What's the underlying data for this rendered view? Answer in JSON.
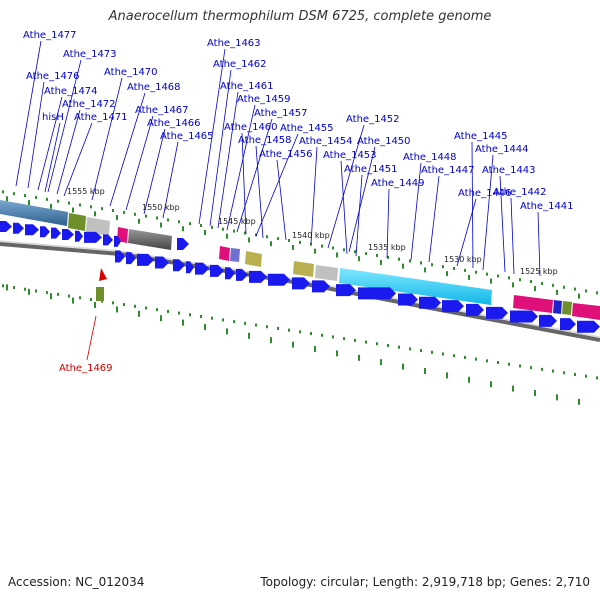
{
  "title": "Anaerocellum thermophilum DSM 6725, complete genome",
  "accession": "Accession: NC_012034",
  "topology": "Topology: circular; Length: 2,919,718 bp; Genes: 2,710",
  "colors": {
    "gene": "#1a1aee",
    "label": "#0000cc",
    "highlight": "#cc0000",
    "backbone": "#888888",
    "tick": "#2e8b2e"
  },
  "kbp_ticks": [
    "1555 kbp",
    "1550 kbp",
    "1545 kbp",
    "1540 kbp",
    "1535 kbp",
    "1530 kbp",
    "1525 kbp"
  ],
  "gene_labels": [
    "Athe_1477",
    "Athe_1473",
    "Athe_1476",
    "Athe_1474",
    "hisH",
    "Athe_1472",
    "Athe_1471",
    "Athe_1470",
    "Athe_1468",
    "Athe_1467",
    "Athe_1466",
    "Athe_1465",
    "Athe_1463",
    "Athe_1462",
    "Athe_1461",
    "Athe_1459",
    "Athe_1457",
    "Athe_1460",
    "Athe_1455",
    "Athe_1458",
    "Athe_1456",
    "Athe_1454",
    "Athe_1452",
    "Athe_1450",
    "Athe_1453",
    "Athe_1451",
    "Athe_1449",
    "Athe_1448",
    "Athe_1447",
    "Athe_1446",
    "Athe_1445",
    "Athe_1444",
    "Athe_1443",
    "Athe_1442",
    "Athe_1441"
  ],
  "highlighted_gene": "Athe_1469"
}
